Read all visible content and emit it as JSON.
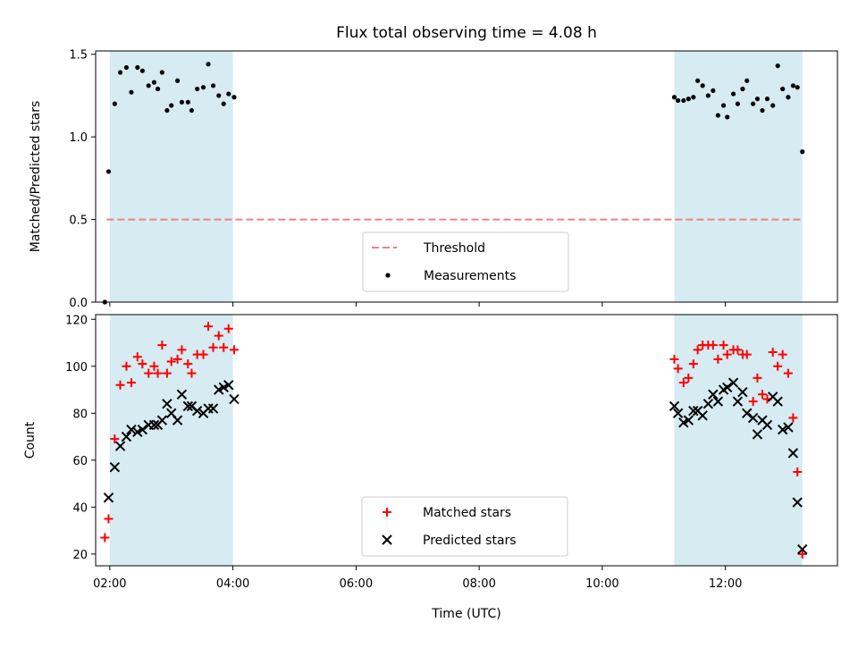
{
  "chart_title": "Flux total observing time = 4.08 h",
  "colors": {
    "shade": "#add8e6",
    "threshold": "#f08080",
    "matched": "#ff0000",
    "predicted": "#000000",
    "measurement": "#000000"
  },
  "chart_data": [
    {
      "type": "scatter",
      "panel": "top",
      "ylabel": "Matched/Predicted stars",
      "ylim": [
        0,
        1.52
      ],
      "yticks": [
        0.0,
        0.5,
        1.0,
        1.5
      ],
      "ytick_labels": [
        "0.0",
        "0.5",
        "1.0",
        "1.5"
      ],
      "xlim_hours": [
        1.77,
        13.82
      ],
      "xticks_hours": [
        2,
        4,
        6,
        8,
        10,
        12
      ],
      "shaded_intervals_hours": [
        [
          2.0,
          4.0
        ],
        [
          11.17,
          13.25
        ]
      ],
      "threshold": {
        "name": "Threshold",
        "value": 0.5,
        "x_range_hours": [
          1.95,
          13.25
        ]
      },
      "legend": {
        "position": "lower center",
        "entries": [
          "Threshold",
          "Measurements"
        ]
      },
      "series": [
        {
          "name": "Measurements",
          "x_hours": [
            1.92,
            1.98,
            2.08,
            2.17,
            2.27,
            2.35,
            2.45,
            2.53,
            2.63,
            2.72,
            2.78,
            2.85,
            2.93,
            3.0,
            3.1,
            3.17,
            3.27,
            3.33,
            3.42,
            3.52,
            3.6,
            3.68,
            3.77,
            3.85,
            3.93,
            4.02,
            11.17,
            11.23,
            11.32,
            11.4,
            11.48,
            11.55,
            11.63,
            11.72,
            11.8,
            11.88,
            11.97,
            12.03,
            12.13,
            12.2,
            12.28,
            12.35,
            12.45,
            12.52,
            12.6,
            12.68,
            12.77,
            12.85,
            12.93,
            13.02,
            13.1,
            13.17,
            13.25
          ],
          "y": [
            0.0,
            0.79,
            1.2,
            1.39,
            1.42,
            1.27,
            1.42,
            1.4,
            1.31,
            1.33,
            1.29,
            1.39,
            1.16,
            1.19,
            1.34,
            1.21,
            1.21,
            1.16,
            1.29,
            1.3,
            1.44,
            1.31,
            1.25,
            1.2,
            1.26,
            1.24,
            1.24,
            1.22,
            1.22,
            1.23,
            1.24,
            1.34,
            1.31,
            1.25,
            1.28,
            1.13,
            1.19,
            1.12,
            1.26,
            1.2,
            1.29,
            1.34,
            1.2,
            1.23,
            1.16,
            1.23,
            1.19,
            1.43,
            1.29,
            1.24,
            1.31,
            1.3,
            0.91
          ]
        }
      ]
    },
    {
      "type": "scatter",
      "panel": "bottom",
      "xlabel": "Time (UTC)",
      "ylabel": "Count",
      "ylim": [
        15,
        122
      ],
      "yticks": [
        20,
        40,
        60,
        80,
        100,
        120
      ],
      "ytick_labels": [
        "20",
        "40",
        "60",
        "80",
        "100",
        "120"
      ],
      "xlim_hours": [
        1.77,
        13.82
      ],
      "xticks_hours": [
        2,
        4,
        6,
        8,
        10,
        12
      ],
      "xtick_labels": [
        "02:00",
        "04:00",
        "06:00",
        "08:00",
        "10:00",
        "12:00"
      ],
      "shaded_intervals_hours": [
        [
          2.0,
          4.0
        ],
        [
          11.17,
          13.25
        ]
      ],
      "legend": {
        "position": "lower center",
        "entries": [
          "Matched stars",
          "Predicted stars"
        ]
      },
      "series": [
        {
          "name": "Matched stars",
          "marker": "plus",
          "x_hours": [
            1.92,
            1.98,
            2.08,
            2.17,
            2.27,
            2.35,
            2.45,
            2.53,
            2.63,
            2.72,
            2.78,
            2.85,
            2.93,
            3.0,
            3.1,
            3.17,
            3.27,
            3.33,
            3.42,
            3.52,
            3.6,
            3.68,
            3.77,
            3.85,
            3.93,
            4.02,
            11.17,
            11.23,
            11.32,
            11.4,
            11.48,
            11.55,
            11.63,
            11.72,
            11.8,
            11.88,
            11.97,
            12.03,
            12.13,
            12.2,
            12.28,
            12.35,
            12.45,
            12.52,
            12.6,
            12.68,
            12.77,
            12.85,
            12.93,
            13.02,
            13.1,
            13.17,
            13.25
          ],
          "y": [
            27,
            35,
            69,
            92,
            100,
            93,
            104,
            101,
            97,
            100,
            97,
            109,
            97,
            102,
            103,
            107,
            101,
            97,
            105,
            105,
            117,
            108,
            113,
            108,
            116,
            107,
            103,
            99,
            93,
            95,
            101,
            107,
            109,
            109,
            109,
            103,
            109,
            105,
            107,
            107,
            105,
            105,
            85,
            95,
            88,
            86,
            106,
            100,
            105,
            97,
            78,
            55,
            20
          ]
        },
        {
          "name": "Predicted stars",
          "marker": "x",
          "x_hours": [
            1.98,
            2.08,
            2.17,
            2.27,
            2.35,
            2.45,
            2.53,
            2.63,
            2.72,
            2.78,
            2.85,
            2.93,
            3.0,
            3.1,
            3.17,
            3.27,
            3.33,
            3.42,
            3.52,
            3.6,
            3.68,
            3.77,
            3.85,
            3.93,
            4.02,
            11.17,
            11.23,
            11.32,
            11.4,
            11.48,
            11.55,
            11.63,
            11.72,
            11.8,
            11.88,
            11.97,
            12.03,
            12.13,
            12.2,
            12.28,
            12.35,
            12.45,
            12.52,
            12.6,
            12.68,
            12.77,
            12.85,
            12.93,
            13.02,
            13.1,
            13.17,
            13.25
          ],
          "y": [
            44,
            57,
            66,
            70,
            73,
            72,
            73,
            75,
            75,
            75,
            77,
            84,
            80,
            77,
            88,
            83,
            83,
            81,
            80,
            82,
            82,
            90,
            91,
            92,
            86,
            83,
            80,
            76,
            77,
            81,
            81,
            79,
            84,
            88,
            85,
            90,
            91,
            93,
            85,
            89,
            80,
            78,
            71,
            77,
            75,
            87,
            85,
            73,
            74,
            63,
            42,
            22
          ]
        }
      ]
    }
  ]
}
